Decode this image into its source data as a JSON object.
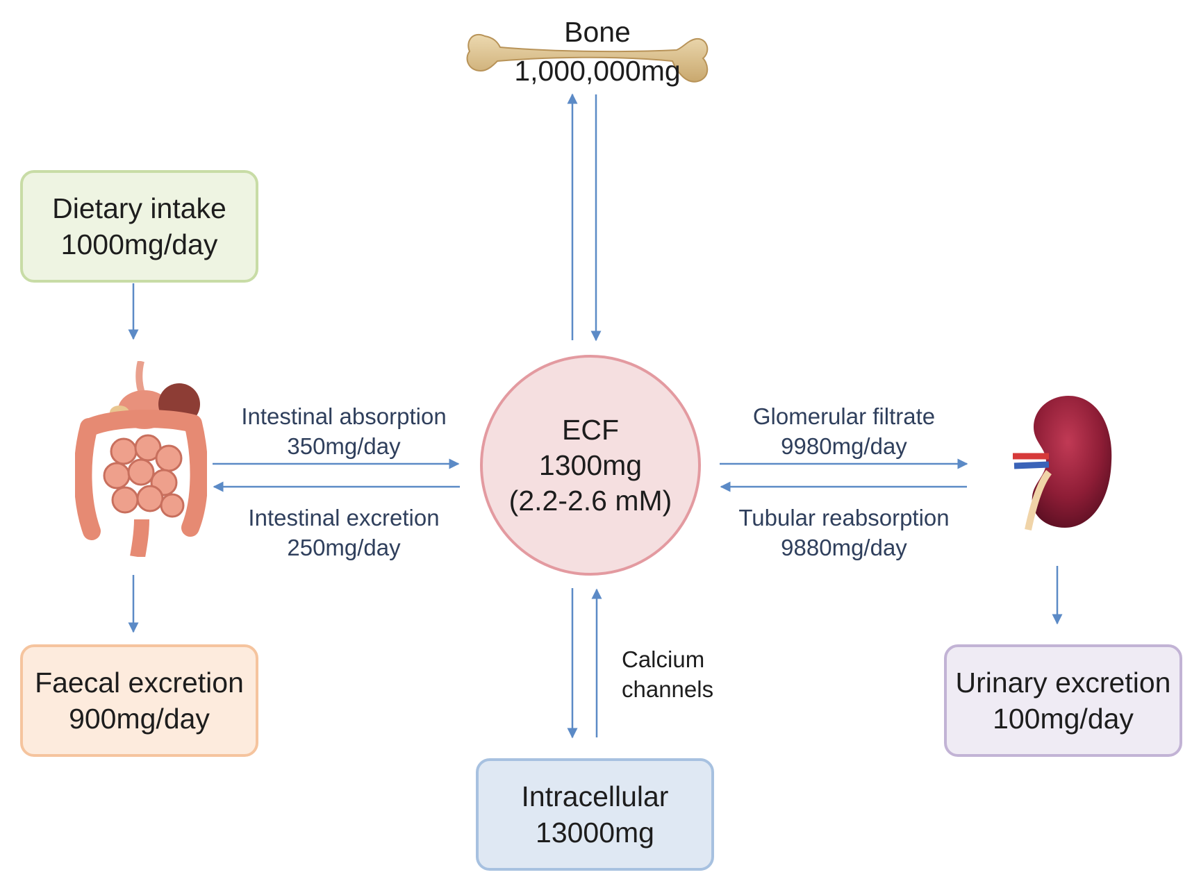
{
  "bone": {
    "name": "Bone",
    "amount": "1,000,000mg"
  },
  "ecf": {
    "name": "ECF",
    "amount": "1300mg",
    "range": "(2.2-2.6 mM)"
  },
  "dietary": {
    "line1": "Dietary intake",
    "line2": "1000mg/day"
  },
  "faecal": {
    "line1": "Faecal excretion",
    "line2": "900mg/day"
  },
  "urinary": {
    "line1": "Urinary excretion",
    "line2": "100mg/day"
  },
  "intracellular": {
    "line1": "Intracellular",
    "line2": "13000mg"
  },
  "flows": {
    "intestinal_absorption": {
      "name": "Intestinal absorption",
      "rate": "350mg/day"
    },
    "intestinal_excretion": {
      "name": "Intestinal excretion",
      "rate": "250mg/day"
    },
    "glomerular_filtrate": {
      "name": "Glomerular filtrate",
      "rate": "9980mg/day"
    },
    "tubular_reabsorption": {
      "name": "Tubular reabsorption",
      "rate": "9880mg/day"
    },
    "calcium_channels": {
      "line1": "Calcium",
      "line2": "channels"
    }
  },
  "colors": {
    "arrow": "#5b8ac6",
    "ecf_border": "#e39aa0",
    "bone": "#dcc08e",
    "kidney": "#8e1d36",
    "intestine": "#e79a86"
  },
  "icons": {
    "bone": "bone-icon",
    "intestine": "intestine-icon",
    "kidney": "kidney-icon"
  }
}
